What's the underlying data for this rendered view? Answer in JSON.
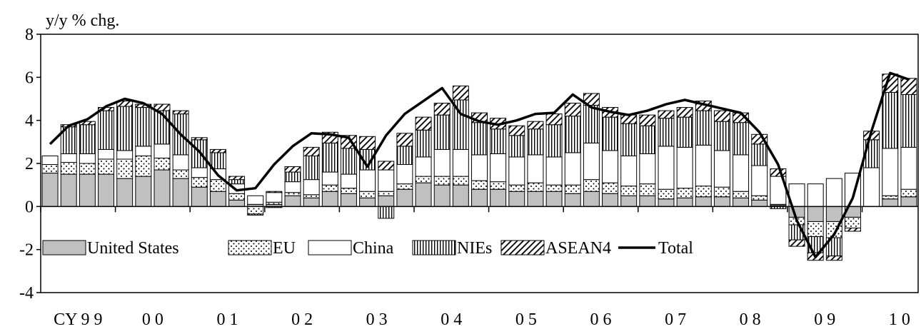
{
  "chart_data": {
    "type": "bar",
    "stacked": true,
    "ylabel": "y/y % chg.",
    "ylim": [
      -4,
      8
    ],
    "yticks": [
      8,
      6,
      4,
      2,
      0,
      -2,
      -4
    ],
    "grid": false,
    "legend_placement": "inside-lower-left",
    "quarters_per_year": 4,
    "start": "CY99 Q1",
    "year_labels": [
      "CY 9 9",
      "0 0",
      "0 1",
      "0 2",
      "0 3",
      "0 4",
      "0 5",
      "0 6",
      "0 7",
      "0 8",
      "0 9",
      "1 0"
    ],
    "series": [
      {
        "name": "United States",
        "fill": "gray",
        "values": [
          1.55,
          1.5,
          1.5,
          1.5,
          1.3,
          1.4,
          1.7,
          1.3,
          0.9,
          0.7,
          0.3,
          0.1,
          0.1,
          0.5,
          0.4,
          0.7,
          0.6,
          0.4,
          0.5,
          0.8,
          1.1,
          1.0,
          1.0,
          0.8,
          0.8,
          0.7,
          0.7,
          0.7,
          0.6,
          0.7,
          0.6,
          0.5,
          0.5,
          0.35,
          0.4,
          0.45,
          0.45,
          0.4,
          0.3,
          0.05,
          -0.5,
          -0.7,
          -0.7,
          -0.5,
          0.0,
          0.35,
          0.45
        ]
      },
      {
        "name": "EU",
        "fill": "dots",
        "values": [
          0.4,
          0.55,
          0.5,
          0.7,
          0.9,
          0.95,
          0.55,
          0.4,
          0.45,
          0.55,
          0.3,
          -0.35,
          0.1,
          0.15,
          0.15,
          0.3,
          0.25,
          0.3,
          0.2,
          0.25,
          0.3,
          0.4,
          0.4,
          0.4,
          0.35,
          0.3,
          0.4,
          0.3,
          0.4,
          0.55,
          0.5,
          0.45,
          0.55,
          0.45,
          0.45,
          0.5,
          0.45,
          0.3,
          0.2,
          0.05,
          -0.35,
          -0.7,
          -0.75,
          -0.5,
          0.0,
          0.15,
          0.35
        ]
      },
      {
        "name": "China",
        "fill": "white",
        "values": [
          0.4,
          0.4,
          0.45,
          0.45,
          0.4,
          0.45,
          0.65,
          0.7,
          0.45,
          0.5,
          0.45,
          0.4,
          0.45,
          0.5,
          0.7,
          0.6,
          0.65,
          1.0,
          1.0,
          0.9,
          0.9,
          1.25,
          1.25,
          1.2,
          1.3,
          1.3,
          1.3,
          1.3,
          1.5,
          1.7,
          1.5,
          1.4,
          1.4,
          2.0,
          1.9,
          1.9,
          1.7,
          1.7,
          1.4,
          1.3,
          1.05,
          1.05,
          1.3,
          1.55,
          1.8,
          2.2,
          1.95
        ]
      },
      {
        "name": "NIEs",
        "fill": "vlines",
        "values": [
          0.0,
          1.25,
          1.35,
          1.8,
          2.05,
          1.8,
          1.55,
          1.9,
          1.3,
          0.75,
          0.2,
          -0.05,
          -0.05,
          0.45,
          1.1,
          1.35,
          1.2,
          0.95,
          -0.55,
          0.85,
          1.25,
          1.6,
          2.3,
          1.5,
          1.15,
          1.0,
          1.2,
          1.5,
          1.7,
          1.75,
          1.55,
          1.5,
          1.3,
          1.3,
          1.4,
          1.6,
          1.35,
          1.5,
          1.0,
          -0.1,
          -0.7,
          -0.75,
          -0.85,
          0.0,
          1.3,
          2.6,
          2.45
        ]
      },
      {
        "name": "ASEAN4",
        "fill": "hatch",
        "values": [
          0.0,
          0.1,
          0.15,
          0.15,
          0.25,
          0.15,
          0.3,
          0.15,
          0.1,
          0.15,
          0.15,
          0.0,
          0.05,
          0.25,
          0.4,
          0.5,
          0.6,
          0.6,
          0.4,
          0.6,
          0.6,
          0.55,
          0.65,
          0.45,
          0.5,
          0.45,
          0.35,
          0.5,
          0.6,
          0.55,
          0.45,
          0.4,
          0.5,
          0.35,
          0.45,
          0.45,
          0.5,
          0.45,
          0.45,
          0.35,
          -0.3,
          -0.35,
          -0.2,
          -0.15,
          0.4,
          0.85,
          0.75
        ]
      },
      {
        "name": "Total",
        "type": "line",
        "values": [
          2.9,
          3.75,
          4.05,
          4.65,
          5.0,
          4.8,
          4.3,
          3.35,
          2.55,
          1.45,
          0.75,
          0.85,
          1.95,
          2.8,
          3.4,
          3.35,
          3.2,
          1.85,
          3.3,
          4.3,
          4.9,
          5.5,
          4.3,
          3.95,
          3.8,
          4.0,
          4.3,
          4.35,
          5.2,
          4.6,
          4.4,
          4.25,
          4.45,
          4.75,
          4.95,
          4.75,
          4.55,
          4.35,
          3.45,
          1.95,
          -0.65,
          -2.35,
          -1.3,
          0.4,
          3.5,
          6.2,
          5.9
        ]
      }
    ]
  }
}
